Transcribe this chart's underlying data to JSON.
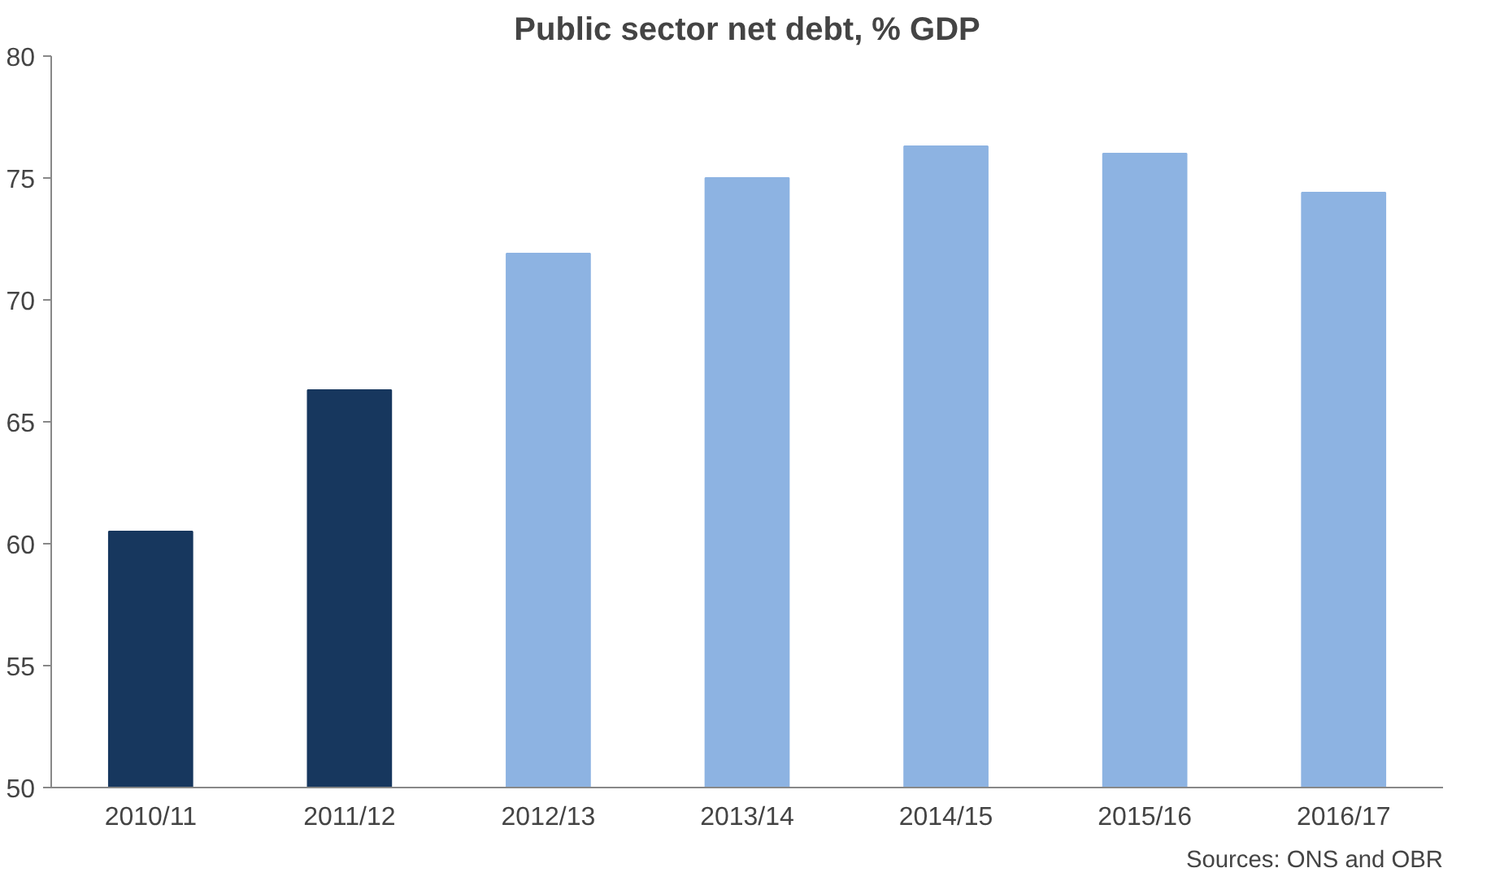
{
  "chart_data": {
    "type": "bar",
    "title": "Public sector net debt, % GDP",
    "categories": [
      "2010/11",
      "2011/12",
      "2012/13",
      "2013/14",
      "2014/15",
      "2015/16",
      "2016/17"
    ],
    "values": [
      60.5,
      66.3,
      71.9,
      75.0,
      76.3,
      76.0,
      74.4
    ],
    "colors": [
      "#17375e",
      "#17375e",
      "#8db3e2",
      "#8db3e2",
      "#8db3e2",
      "#8db3e2",
      "#8db3e2"
    ],
    "ylim": [
      50,
      80
    ],
    "yticks": [
      50,
      55,
      60,
      65,
      70,
      75,
      80
    ],
    "grid": false,
    "annotations": [
      "Sources: ONS and OBR"
    ]
  }
}
